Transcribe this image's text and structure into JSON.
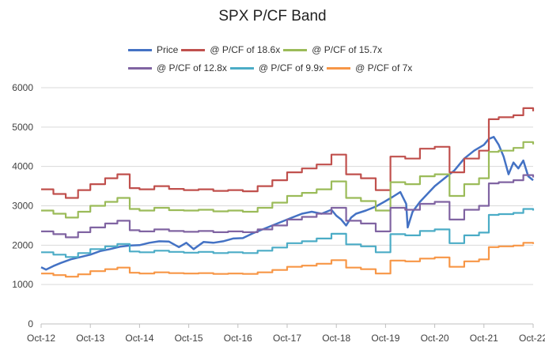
{
  "chart_data": {
    "type": "line",
    "title": "SPX P/CF Band",
    "xlabel": "",
    "ylabel": "",
    "ylim": [
      0,
      6000
    ],
    "yticks": [
      0,
      1000,
      2000,
      3000,
      4000,
      5000,
      6000
    ],
    "xtick_labels": [
      "Oct-12",
      "Oct-13",
      "Oct-14",
      "Oct-15",
      "Oct-16",
      "Oct-17",
      "Oct-18",
      "Oct-19",
      "Oct-20",
      "Oct-21",
      "Oct-22"
    ],
    "grid": "horizontal",
    "legend_position": "top",
    "series": [
      {
        "name": "Price",
        "color": "#4472c4",
        "x": [
          0,
          0.1,
          0.25,
          0.4,
          0.6,
          0.8,
          1.0,
          1.2,
          1.4,
          1.6,
          1.8,
          2.0,
          2.2,
          2.4,
          2.6,
          2.8,
          2.95,
          3.1,
          3.3,
          3.5,
          3.7,
          3.9,
          4.1,
          4.3,
          4.5,
          4.7,
          4.9,
          5.1,
          5.3,
          5.5,
          5.7,
          5.9,
          6.0,
          6.1,
          6.2,
          6.3,
          6.4,
          6.6,
          6.8,
          7.0,
          7.15,
          7.3,
          7.42,
          7.45,
          7.55,
          7.7,
          7.85,
          8.0,
          8.2,
          8.4,
          8.6,
          8.8,
          9.0,
          9.1,
          9.2,
          9.3,
          9.4,
          9.5,
          9.6,
          9.7,
          9.8,
          9.9,
          10.0
        ],
        "values": [
          1440,
          1380,
          1470,
          1550,
          1640,
          1700,
          1760,
          1850,
          1900,
          1960,
          1990,
          2000,
          2060,
          2100,
          2090,
          1950,
          2060,
          1900,
          2080,
          2060,
          2100,
          2170,
          2180,
          2300,
          2400,
          2500,
          2600,
          2700,
          2800,
          2850,
          2800,
          2900,
          2750,
          2650,
          2500,
          2700,
          2800,
          2880,
          2980,
          3120,
          3230,
          3350,
          3050,
          2450,
          2850,
          3100,
          3300,
          3500,
          3700,
          3900,
          4200,
          4400,
          4550,
          4700,
          4750,
          4550,
          4250,
          3800,
          4100,
          3950,
          4150,
          3750,
          3650
        ]
      },
      {
        "name": "@ P/CF of 18.6x",
        "color": "#c0504d",
        "x": [
          0,
          0.25,
          0.5,
          0.75,
          1.0,
          1.3,
          1.55,
          1.8,
          2.0,
          2.3,
          2.6,
          2.9,
          3.2,
          3.5,
          3.8,
          4.1,
          4.4,
          4.7,
          5.0,
          5.3,
          5.6,
          5.9,
          6.2,
          6.5,
          6.8,
          7.1,
          7.4,
          7.7,
          8.0,
          8.3,
          8.6,
          8.9,
          9.1,
          9.3,
          9.6,
          9.8,
          10.0
        ],
        "values": [
          3420,
          3300,
          3200,
          3400,
          3550,
          3700,
          3800,
          3450,
          3420,
          3500,
          3430,
          3400,
          3420,
          3380,
          3400,
          3370,
          3500,
          3650,
          3850,
          3950,
          4050,
          4300,
          3800,
          3700,
          3400,
          4250,
          4200,
          4450,
          4500,
          3850,
          4200,
          4400,
          5200,
          5250,
          5300,
          5480,
          5400
        ]
      },
      {
        "name": "@ P/CF of 15.7x",
        "color": "#9bbb59",
        "x": [
          0,
          0.25,
          0.5,
          0.75,
          1.0,
          1.3,
          1.55,
          1.8,
          2.0,
          2.3,
          2.6,
          2.9,
          3.2,
          3.5,
          3.8,
          4.1,
          4.4,
          4.7,
          5.0,
          5.3,
          5.6,
          5.9,
          6.2,
          6.5,
          6.8,
          7.1,
          7.4,
          7.7,
          8.0,
          8.3,
          8.6,
          8.9,
          9.1,
          9.3,
          9.6,
          9.8,
          10.0
        ],
        "values": [
          2880,
          2800,
          2700,
          2850,
          3000,
          3100,
          3200,
          2920,
          2880,
          2950,
          2890,
          2880,
          2900,
          2860,
          2880,
          2850,
          2950,
          3080,
          3250,
          3330,
          3420,
          3620,
          3200,
          3120,
          2880,
          3600,
          3550,
          3750,
          3800,
          3250,
          3550,
          3700,
          4370,
          4400,
          4470,
          4620,
          4560
        ]
      },
      {
        "name": "@ P/CF of 12.8x",
        "color": "#8064a2",
        "x": [
          0,
          0.25,
          0.5,
          0.75,
          1.0,
          1.3,
          1.55,
          1.8,
          2.0,
          2.3,
          2.6,
          2.9,
          3.2,
          3.5,
          3.8,
          4.1,
          4.4,
          4.7,
          5.0,
          5.3,
          5.6,
          5.9,
          6.2,
          6.5,
          6.8,
          7.1,
          7.4,
          7.7,
          8.0,
          8.3,
          8.6,
          8.9,
          9.1,
          9.3,
          9.6,
          9.8,
          10.0
        ],
        "values": [
          2350,
          2280,
          2200,
          2330,
          2450,
          2550,
          2620,
          2380,
          2350,
          2400,
          2360,
          2340,
          2360,
          2330,
          2350,
          2330,
          2400,
          2500,
          2650,
          2720,
          2800,
          2950,
          2620,
          2550,
          2350,
          2950,
          2900,
          3050,
          3100,
          2650,
          2900,
          3000,
          3570,
          3600,
          3650,
          3780,
          3720
        ]
      },
      {
        "name": "@ P/CF of 9.9x",
        "color": "#4bacc6",
        "x": [
          0,
          0.25,
          0.5,
          0.75,
          1.0,
          1.3,
          1.55,
          1.8,
          2.0,
          2.3,
          2.6,
          2.9,
          3.2,
          3.5,
          3.8,
          4.1,
          4.4,
          4.7,
          5.0,
          5.3,
          5.6,
          5.9,
          6.2,
          6.5,
          6.8,
          7.1,
          7.4,
          7.7,
          8.0,
          8.3,
          8.6,
          8.9,
          9.1,
          9.3,
          9.6,
          9.8,
          10.0
        ],
        "values": [
          1820,
          1760,
          1700,
          1800,
          1900,
          1970,
          2030,
          1840,
          1820,
          1860,
          1830,
          1810,
          1830,
          1800,
          1820,
          1800,
          1860,
          1940,
          2050,
          2100,
          2170,
          2290,
          2020,
          1970,
          1820,
          2280,
          2250,
          2360,
          2400,
          2050,
          2250,
          2320,
          2770,
          2790,
          2820,
          2920,
          2880
        ]
      },
      {
        "name": "@ P/CF of 7x",
        "color": "#f79646",
        "x": [
          0,
          0.25,
          0.5,
          0.75,
          1.0,
          1.3,
          1.55,
          1.8,
          2.0,
          2.3,
          2.6,
          2.9,
          3.2,
          3.5,
          3.8,
          4.1,
          4.4,
          4.7,
          5.0,
          5.3,
          5.6,
          5.9,
          6.2,
          6.5,
          6.8,
          7.1,
          7.4,
          7.7,
          8.0,
          8.3,
          8.6,
          8.9,
          9.1,
          9.3,
          9.6,
          9.8,
          10.0
        ],
        "values": [
          1280,
          1240,
          1200,
          1260,
          1340,
          1390,
          1430,
          1300,
          1280,
          1310,
          1290,
          1280,
          1290,
          1270,
          1280,
          1270,
          1310,
          1370,
          1450,
          1480,
          1530,
          1620,
          1430,
          1390,
          1280,
          1610,
          1590,
          1660,
          1690,
          1450,
          1590,
          1640,
          1950,
          1970,
          1990,
          2060,
          2030
        ]
      }
    ]
  }
}
